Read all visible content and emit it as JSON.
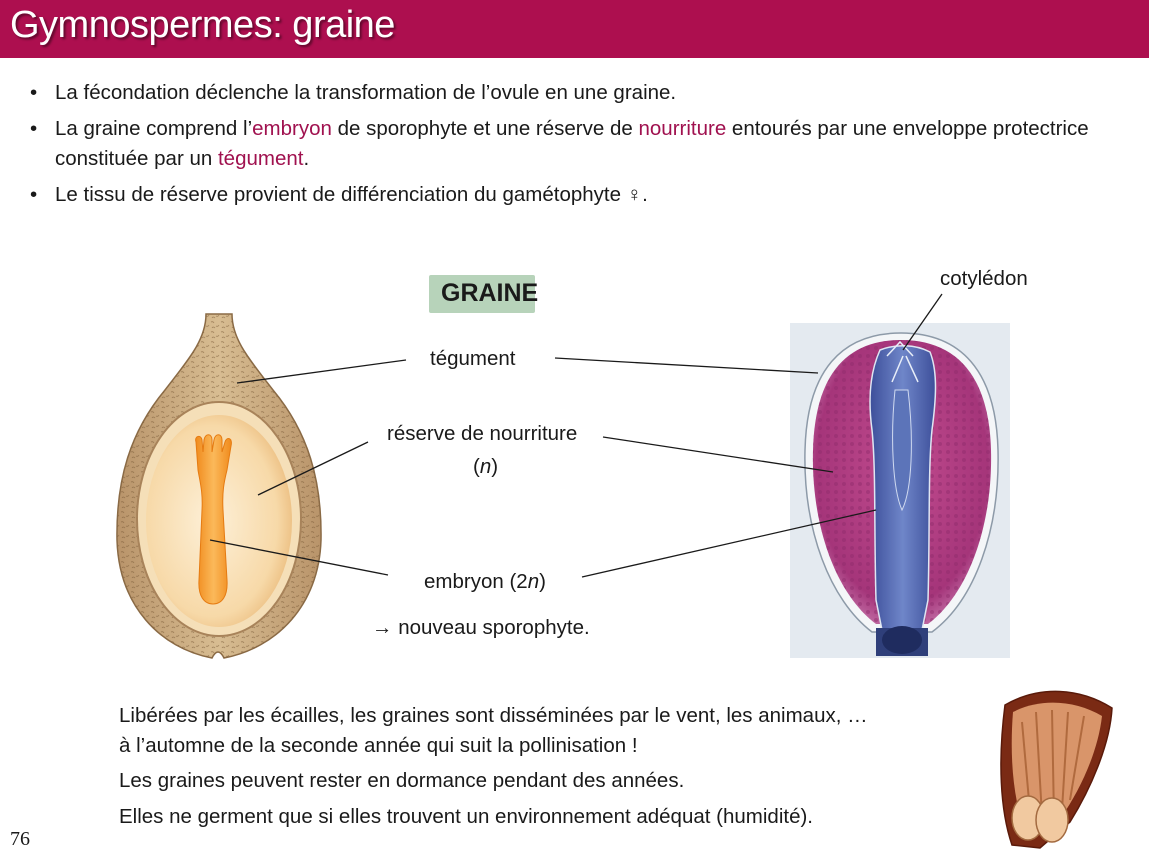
{
  "slide": {
    "title": "Gymnospermes: graine",
    "page_number": "76"
  },
  "bullets": {
    "b1": "La fécondation déclenche la transformation de l’ovule en une graine.",
    "b2": {
      "t1": "La graine comprend l’",
      "embryon": "embryon",
      "t2": " de sporophyte et une réserve de ",
      "nourriture": "nourriture",
      "t3": " entourés par une enveloppe protectrice constituée par un ",
      "tegument": "tégument",
      "t4": "."
    },
    "b3": "Le tissu de réserve provient de différenciation du gamétophyte ♀."
  },
  "figure": {
    "heading": "GRAINE",
    "cotyledon": "cotylédon",
    "tegument": "tégument",
    "reserve": "réserve de nourriture",
    "reserve_ploidy_open": "(",
    "reserve_ploidy_n": "n",
    "reserve_ploidy_close": ")",
    "embryon_text": "embryon (2",
    "embryon_n": "n",
    "embryon_close": ")",
    "sporophyte": "→ nouveau sporophyte."
  },
  "paragraph": {
    "line1": "Libérées par les écailles, les graines sont disséminées par le vent, les animaux, …",
    "line2": "à l’automne de la seconde année qui suit la pollinisation !",
    "line3": "Les graines peuvent rester en dormance pendant des années.",
    "line4": "Elles ne germent que si elles trouvent un environnement adéquat (humidité)."
  },
  "colors": {
    "title_bar": "#ad0f4f",
    "highlight": "#a0114f",
    "heading_box": "#b7d3ba"
  }
}
